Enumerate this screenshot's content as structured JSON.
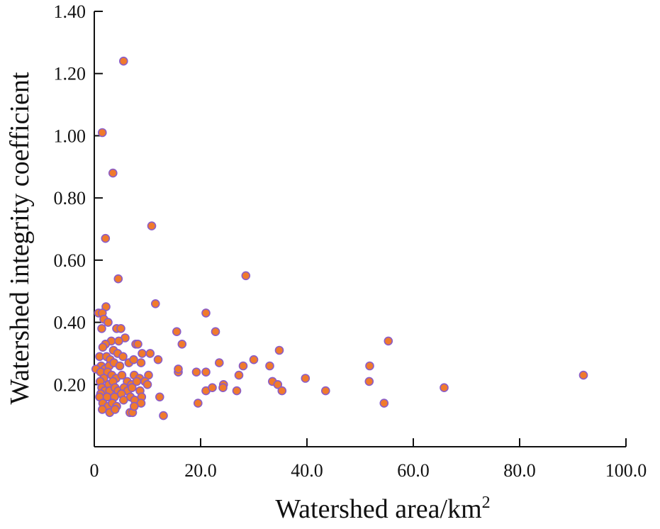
{
  "chart_data": {
    "type": "scatter",
    "xlabel": "Watershed area/km",
    "xlabel_superscript": "2",
    "ylabel": "Watershed integrity coefficient",
    "xlim": [
      0,
      100
    ],
    "ylim": [
      0,
      1.4
    ],
    "x_ticks": [
      {
        "value": 0,
        "label": "0"
      },
      {
        "value": 20,
        "label": "20.0"
      },
      {
        "value": 40,
        "label": "40.0"
      },
      {
        "value": 60,
        "label": "60.0"
      },
      {
        "value": 80,
        "label": "80.0"
      },
      {
        "value": 100,
        "label": "100.0"
      }
    ],
    "y_ticks": [
      {
        "value": 0.2,
        "label": "0.20"
      },
      {
        "value": 0.4,
        "label": "0.40"
      },
      {
        "value": 0.6,
        "label": "0.60"
      },
      {
        "value": 0.8,
        "label": "0.80"
      },
      {
        "value": 1.0,
        "label": "1.00"
      },
      {
        "value": 1.2,
        "label": "1.20"
      },
      {
        "value": 1.4,
        "label": "1.40"
      }
    ],
    "grid": false,
    "marker_fill": "#f07a2c",
    "marker_edge": "#8a5cc8",
    "points": [
      [
        5.5,
        1.24
      ],
      [
        1.5,
        1.01
      ],
      [
        3.5,
        0.88
      ],
      [
        10.8,
        0.71
      ],
      [
        2.1,
        0.67
      ],
      [
        4.5,
        0.54
      ],
      [
        28.5,
        0.55
      ],
      [
        11.5,
        0.46
      ],
      [
        21.0,
        0.43
      ],
      [
        2.2,
        0.45
      ],
      [
        0.8,
        0.43
      ],
      [
        1.5,
        0.43
      ],
      [
        1.8,
        0.41
      ],
      [
        2.6,
        0.4
      ],
      [
        1.4,
        0.38
      ],
      [
        4.2,
        0.38
      ],
      [
        5.0,
        0.38
      ],
      [
        15.5,
        0.37
      ],
      [
        22.8,
        0.37
      ],
      [
        5.8,
        0.35
      ],
      [
        3.2,
        0.34
      ],
      [
        4.6,
        0.34
      ],
      [
        2.1,
        0.33
      ],
      [
        7.8,
        0.33
      ],
      [
        8.2,
        0.33
      ],
      [
        16.5,
        0.33
      ],
      [
        1.6,
        0.32
      ],
      [
        3.6,
        0.31
      ],
      [
        55.3,
        0.34
      ],
      [
        34.8,
        0.31
      ],
      [
        1.0,
        0.29
      ],
      [
        2.3,
        0.29
      ],
      [
        3.0,
        0.28
      ],
      [
        4.4,
        0.3
      ],
      [
        5.4,
        0.29
      ],
      [
        9.0,
        0.3
      ],
      [
        10.5,
        0.3
      ],
      [
        6.5,
        0.27
      ],
      [
        7.4,
        0.28
      ],
      [
        8.8,
        0.27
      ],
      [
        12.0,
        0.28
      ],
      [
        23.5,
        0.27
      ],
      [
        28.0,
        0.26
      ],
      [
        30.0,
        0.28
      ],
      [
        33.0,
        0.26
      ],
      [
        51.8,
        0.26
      ],
      [
        1.3,
        0.26
      ],
      [
        2.0,
        0.25
      ],
      [
        2.8,
        0.26
      ],
      [
        3.7,
        0.27
      ],
      [
        4.8,
        0.26
      ],
      [
        0.3,
        0.25
      ],
      [
        1.2,
        0.24
      ],
      [
        2.5,
        0.24
      ],
      [
        3.3,
        0.23
      ],
      [
        4.1,
        0.22
      ],
      [
        5.2,
        0.23
      ],
      [
        7.5,
        0.23
      ],
      [
        8.5,
        0.22
      ],
      [
        10.2,
        0.23
      ],
      [
        15.8,
        0.24
      ],
      [
        15.8,
        0.25
      ],
      [
        19.2,
        0.24
      ],
      [
        21.0,
        0.24
      ],
      [
        27.2,
        0.23
      ],
      [
        39.7,
        0.22
      ],
      [
        1.8,
        0.22
      ],
      [
        1.1,
        0.21
      ],
      [
        2.7,
        0.2
      ],
      [
        3.5,
        0.21
      ],
      [
        6.2,
        0.21
      ],
      [
        7.0,
        0.2
      ],
      [
        8.0,
        0.21
      ],
      [
        9.5,
        0.21
      ],
      [
        10.0,
        0.2
      ],
      [
        24.3,
        0.2
      ],
      [
        33.5,
        0.21
      ],
      [
        34.5,
        0.2
      ],
      [
        51.7,
        0.21
      ],
      [
        92.0,
        0.23
      ],
      [
        1.4,
        0.19
      ],
      [
        2.0,
        0.18
      ],
      [
        2.9,
        0.18
      ],
      [
        3.9,
        0.19
      ],
      [
        4.5,
        0.18
      ],
      [
        5.6,
        0.19
      ],
      [
        6.3,
        0.18
      ],
      [
        7.1,
        0.19
      ],
      [
        8.6,
        0.18
      ],
      [
        21.0,
        0.18
      ],
      [
        22.2,
        0.19
      ],
      [
        24.2,
        0.19
      ],
      [
        26.8,
        0.18
      ],
      [
        35.3,
        0.18
      ],
      [
        43.5,
        0.18
      ],
      [
        65.8,
        0.19
      ],
      [
        1.2,
        0.17
      ],
      [
        1.0,
        0.16
      ],
      [
        2.4,
        0.16
      ],
      [
        3.8,
        0.16
      ],
      [
        5.1,
        0.17
      ],
      [
        6.8,
        0.16
      ],
      [
        7.6,
        0.15
      ],
      [
        8.9,
        0.16
      ],
      [
        12.3,
        0.16
      ],
      [
        1.6,
        0.14
      ],
      [
        2.6,
        0.13
      ],
      [
        3.4,
        0.14
      ],
      [
        4.2,
        0.13
      ],
      [
        5.5,
        0.15
      ],
      [
        8.8,
        0.14
      ],
      [
        19.5,
        0.14
      ],
      [
        54.5,
        0.14
      ],
      [
        1.5,
        0.12
      ],
      [
        2.9,
        0.11
      ],
      [
        3.9,
        0.12
      ],
      [
        6.7,
        0.11
      ],
      [
        7.2,
        0.11
      ],
      [
        7.5,
        0.13
      ],
      [
        13.0,
        0.1
      ]
    ]
  }
}
